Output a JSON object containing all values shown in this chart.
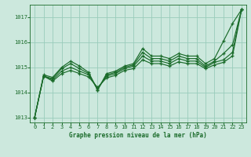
{
  "title": "Graphe pression niveau de la mer (hPa)",
  "xlabel_hours": [
    0,
    1,
    2,
    3,
    4,
    5,
    6,
    7,
    8,
    9,
    10,
    11,
    12,
    13,
    14,
    15,
    16,
    17,
    18,
    19,
    20,
    21,
    22,
    23
  ],
  "ylim": [
    1012.8,
    1017.5
  ],
  "yticks": [
    1013,
    1014,
    1015,
    1016,
    1017
  ],
  "bg_color": "#cce8dd",
  "grid_color": "#99ccbb",
  "line_color": "#1a6b2a",
  "line1": [
    1013.0,
    1014.7,
    1014.6,
    1015.0,
    1015.25,
    1015.05,
    1014.8,
    1014.1,
    1014.75,
    1014.85,
    1015.05,
    1015.15,
    1015.75,
    1015.45,
    1015.45,
    1015.35,
    1015.55,
    1015.45,
    1015.45,
    1015.15,
    1015.35,
    1016.05,
    1016.75,
    1017.3
  ],
  "line2": [
    1013.0,
    1014.65,
    1014.55,
    1014.95,
    1015.15,
    1014.95,
    1014.75,
    1014.1,
    1014.7,
    1014.8,
    1015.0,
    1015.1,
    1015.6,
    1015.35,
    1015.35,
    1015.25,
    1015.45,
    1015.35,
    1015.35,
    1015.05,
    1015.25,
    1015.55,
    1015.9,
    1017.3
  ],
  "line3": [
    1013.0,
    1014.65,
    1014.5,
    1014.85,
    1015.0,
    1014.85,
    1014.7,
    1014.15,
    1014.65,
    1014.75,
    1014.95,
    1015.05,
    1015.45,
    1015.25,
    1015.25,
    1015.15,
    1015.35,
    1015.25,
    1015.25,
    1015.0,
    1015.2,
    1015.3,
    1015.6,
    1017.3
  ],
  "line4": [
    1013.0,
    1014.65,
    1014.45,
    1014.75,
    1014.88,
    1014.75,
    1014.62,
    1014.2,
    1014.58,
    1014.68,
    1014.88,
    1014.95,
    1015.3,
    1015.15,
    1015.15,
    1015.05,
    1015.22,
    1015.15,
    1015.15,
    1014.95,
    1015.1,
    1015.2,
    1015.45,
    1017.3
  ]
}
